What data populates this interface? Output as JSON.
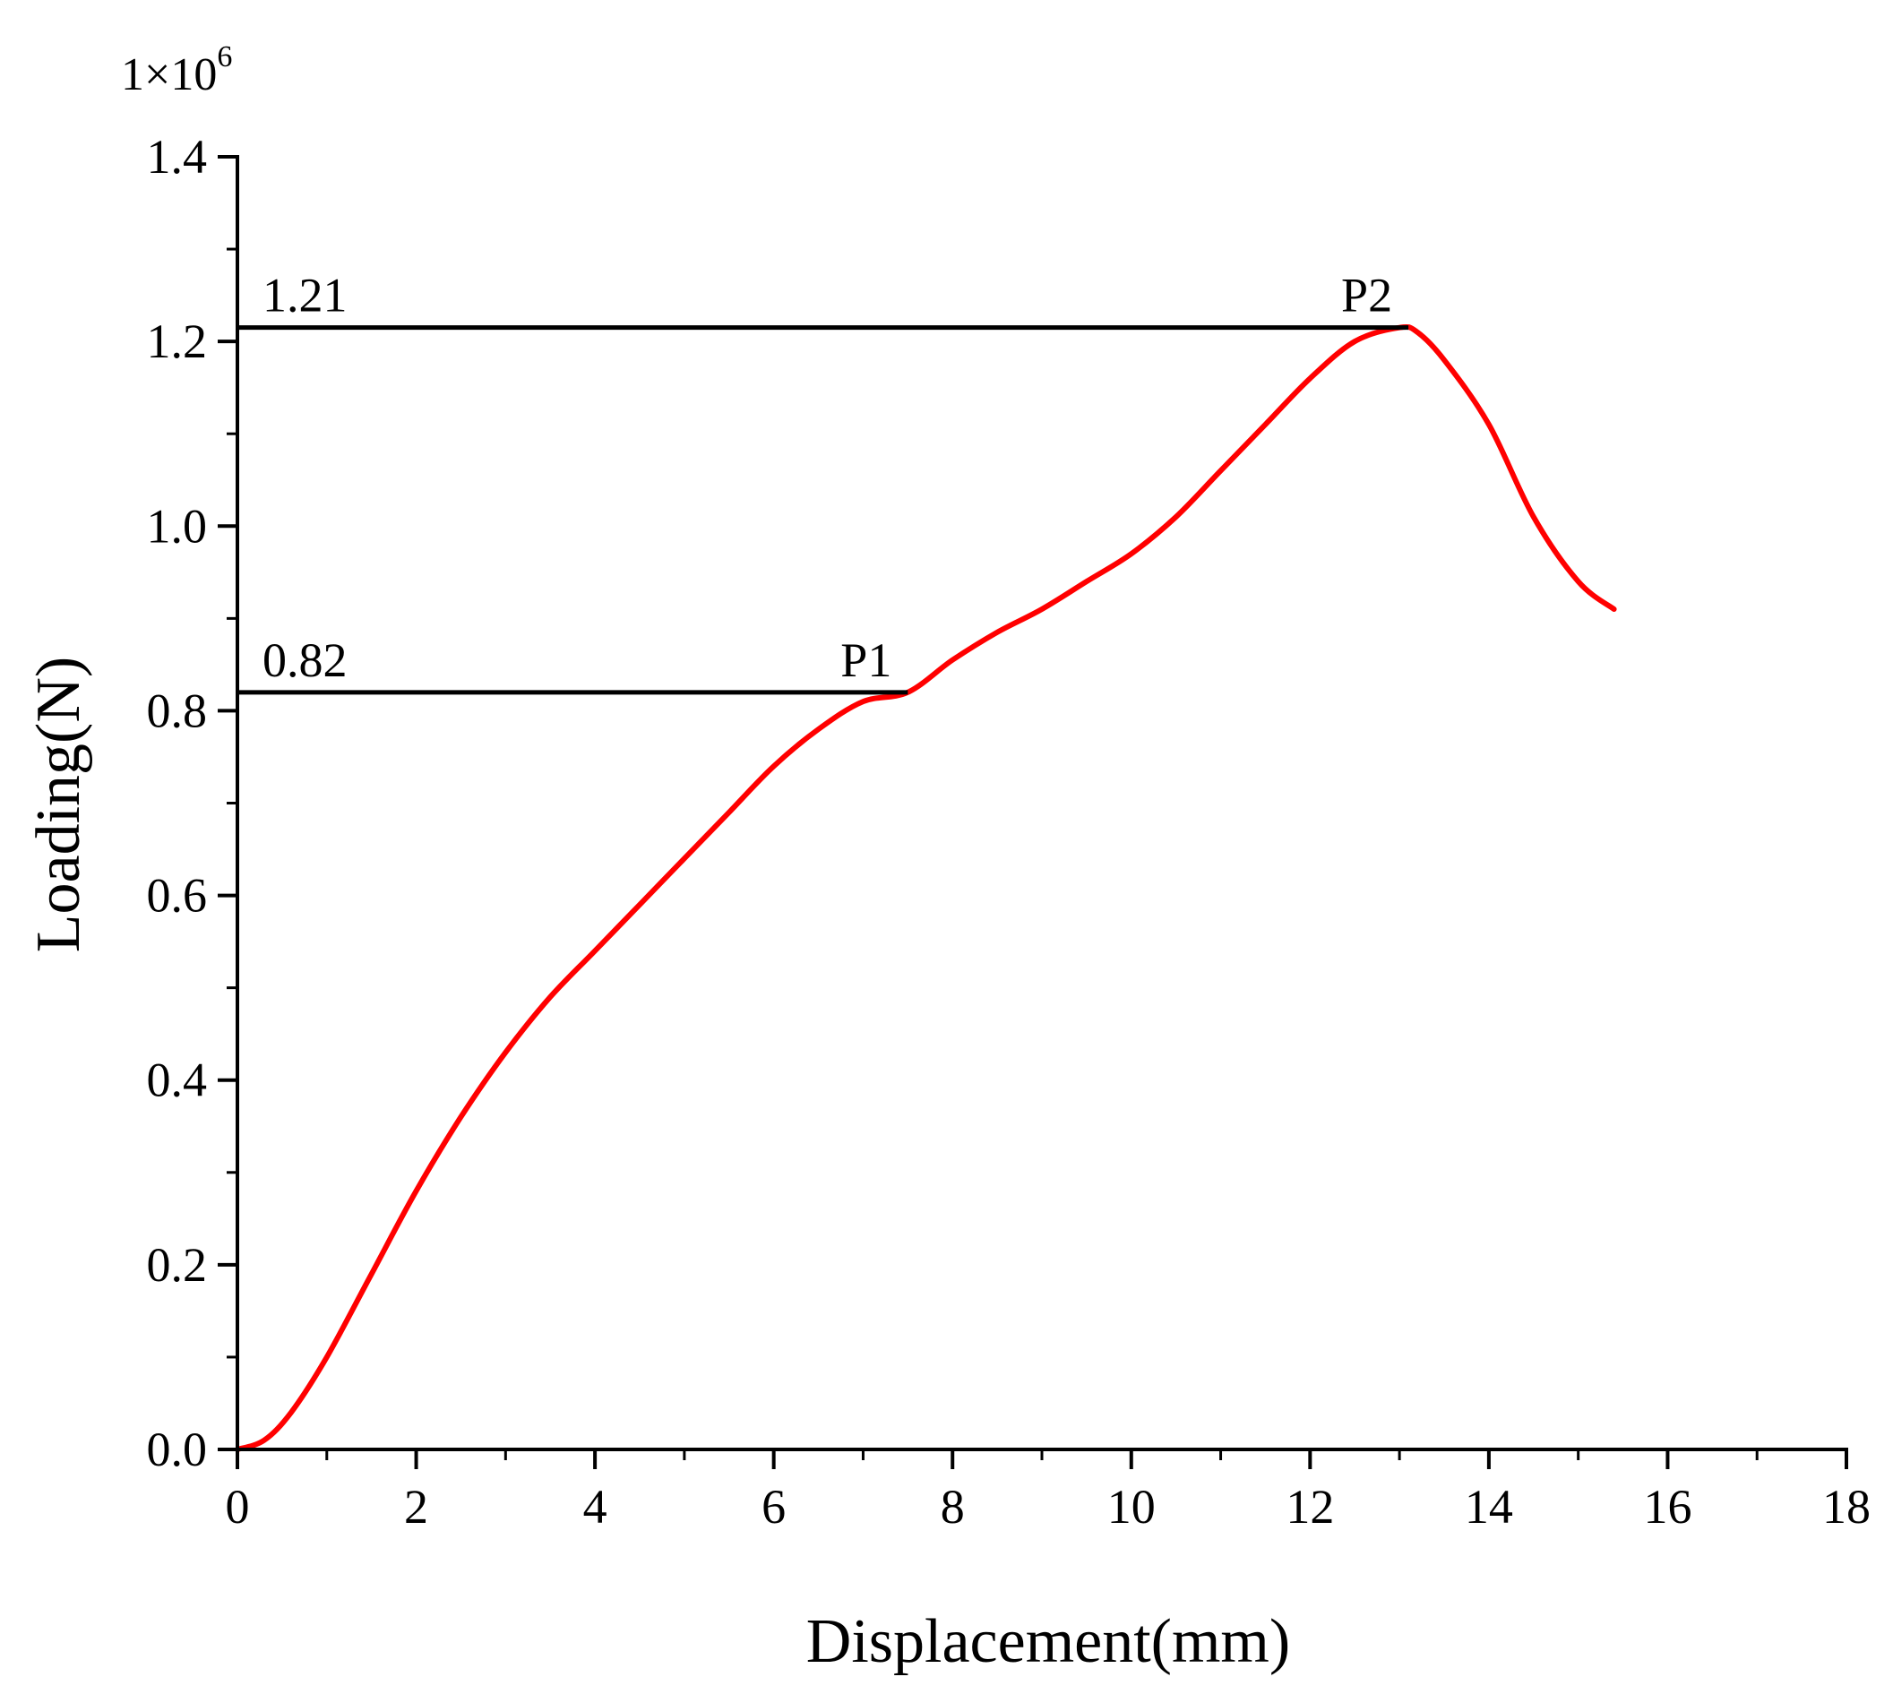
{
  "chart_data": {
    "type": "line",
    "title": "",
    "xlabel": "Displacement(mm)",
    "ylabel": "Loading(N)",
    "y_multiplier": "1×10",
    "y_multiplier_exponent": "6",
    "xlim": [
      0,
      18
    ],
    "ylim": [
      0,
      1.4
    ],
    "xticks": [
      0,
      2,
      4,
      6,
      8,
      10,
      12,
      14,
      16,
      18
    ],
    "xtick_labels": [
      "0",
      "2",
      "4",
      "6",
      "8",
      "10",
      "12",
      "14",
      "16",
      "18"
    ],
    "yticks": [
      0,
      0.2,
      0.4,
      0.6,
      0.8,
      1.0,
      1.2,
      1.4
    ],
    "ytick_labels": [
      "0.0",
      "0.2",
      "0.4",
      "0.6",
      "0.8",
      "1.0",
      "1.2",
      "1.4"
    ],
    "grid": false,
    "series": [
      {
        "color": "#ff0000",
        "x": [
          0,
          0.3,
          0.6,
          1.0,
          1.5,
          2.0,
          2.5,
          3.0,
          3.5,
          4.0,
          4.5,
          5.0,
          5.5,
          6.0,
          6.5,
          7.0,
          7.5,
          8.0,
          8.5,
          9.0,
          9.5,
          10.0,
          10.5,
          11.0,
          11.5,
          12.0,
          12.5,
          13.0,
          13.2,
          13.5,
          14.0,
          14.5,
          15.0,
          15.4
        ],
        "y": [
          0,
          0.01,
          0.04,
          0.1,
          0.19,
          0.28,
          0.36,
          0.43,
          0.49,
          0.54,
          0.59,
          0.64,
          0.69,
          0.74,
          0.78,
          0.81,
          0.82,
          0.855,
          0.885,
          0.91,
          0.94,
          0.97,
          1.01,
          1.06,
          1.11,
          1.16,
          1.2,
          1.215,
          1.21,
          1.18,
          1.11,
          1.01,
          0.94,
          0.91
        ]
      }
    ],
    "reference_lines": [
      {
        "value_label": "1.21",
        "y": 1.215,
        "x_end": 13.1,
        "point_label": "P2"
      },
      {
        "value_label": "0.82",
        "y": 0.82,
        "x_end": 7.5,
        "point_label": "P1"
      }
    ]
  }
}
